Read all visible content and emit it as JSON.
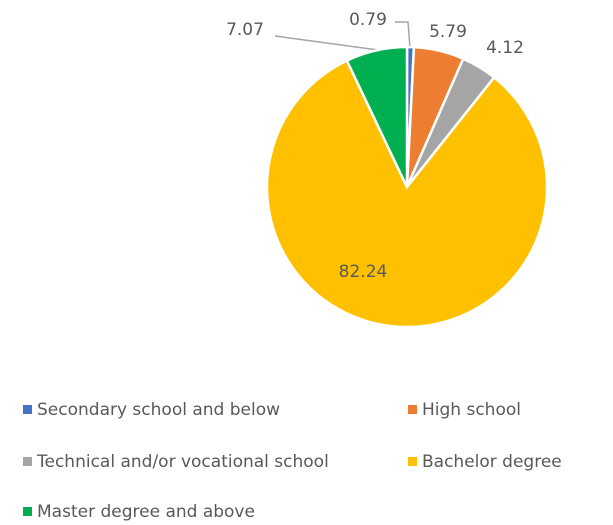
{
  "chart_data": {
    "type": "pie",
    "categories": [
      "Secondary school and below",
      "High school",
      "Technical and/or vocational school",
      "Bachelor degree",
      "Master degree and above"
    ],
    "values": [
      0.79,
      5.79,
      4.12,
      82.24,
      7.07
    ],
    "colors": [
      "#4472c4",
      "#ed7d31",
      "#a5a5a5",
      "#ffc000",
      "#00b050"
    ],
    "legend": "bottom"
  }
}
